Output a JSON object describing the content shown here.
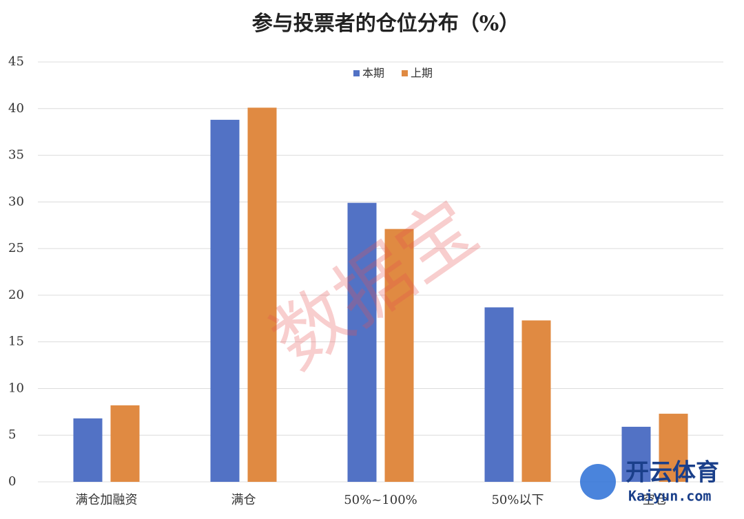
{
  "chart_data": {
    "type": "bar",
    "title": "参与投票者的仓位分布（%）",
    "categories": [
      "满仓加融资",
      "满仓",
      "50%~100%",
      "50%以下",
      "空仓"
    ],
    "series": [
      {
        "name": "本期",
        "color": "#5272c5",
        "values": [
          6.8,
          38.8,
          29.9,
          18.7,
          5.9
        ]
      },
      {
        "name": "上期",
        "color": "#e08a42",
        "values": [
          8.2,
          40.1,
          27.1,
          17.3,
          7.3
        ]
      }
    ],
    "ylim": [
      0,
      45
    ],
    "yticks": [
      0,
      5,
      10,
      15,
      20,
      25,
      30,
      35,
      40,
      45
    ],
    "grid": true,
    "legend": "top",
    "watermark": "数据宝",
    "logo": [
      "开云体育",
      "Kaiyun.com"
    ]
  }
}
